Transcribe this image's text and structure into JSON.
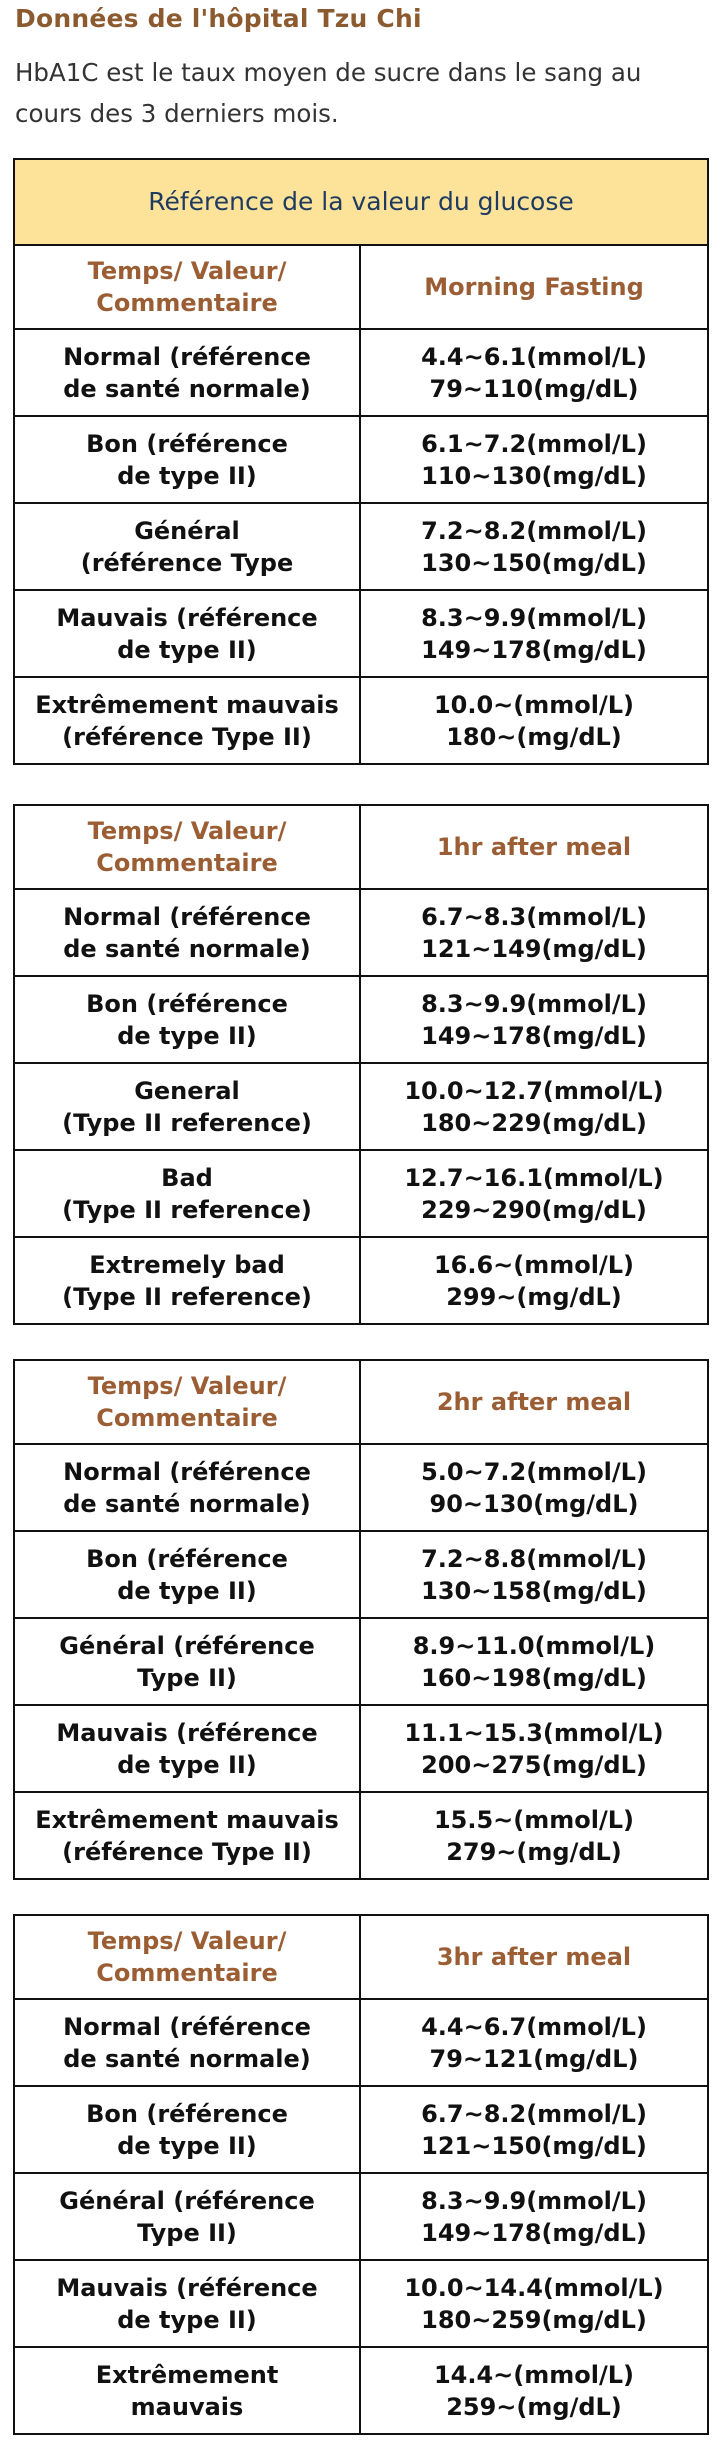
{
  "heading": "Données de l'hôpital Tzu Chi",
  "intro": "HbA1C est le taux moyen de sucre dans le sang au cours des 3 derniers mois.",
  "table_title": "Référence de la valeur du glucose",
  "tables": [
    {
      "header_left": [
        "Temps/ Valeur/",
        "Commentaire"
      ],
      "header_right": "Morning Fasting",
      "rows": [
        {
          "label": [
            "Normal (référence",
            "de santé normale)"
          ],
          "value": [
            "4.4~6.1(mmol/L)",
            "79~110(mg/dL)"
          ]
        },
        {
          "label": [
            "Bon (référence",
            "de type II)"
          ],
          "value": [
            "6.1~7.2(mmol/L)",
            "110~130(mg/dL)"
          ]
        },
        {
          "label": [
            "Général",
            "(référence Type"
          ],
          "value": [
            "7.2~8.2(mmol/L)",
            "130~150(mg/dL)"
          ]
        },
        {
          "label": [
            "Mauvais (référence",
            "de type II)"
          ],
          "value": [
            "8.3~9.9(mmol/L)",
            "149~178(mg/dL)"
          ]
        },
        {
          "label": [
            "Extrêmement mauvais",
            "(référence Type II)"
          ],
          "value": [
            "10.0~(mmol/L)",
            "180~(mg/dL)"
          ]
        }
      ]
    },
    {
      "header_left": [
        "Temps/ Valeur/",
        "Commentaire"
      ],
      "header_right": "1hr after meal",
      "rows": [
        {
          "label": [
            "Normal (référence",
            "de santé normale)"
          ],
          "value": [
            "6.7~8.3(mmol/L)",
            "121~149(mg/dL)"
          ]
        },
        {
          "label": [
            "Bon (référence",
            "de type II)"
          ],
          "value": [
            "8.3~9.9(mmol/L)",
            "149~178(mg/dL)"
          ]
        },
        {
          "label": [
            "General",
            "(Type II reference)"
          ],
          "value": [
            "10.0~12.7(mmol/L)",
            "180~229(mg/dL)"
          ]
        },
        {
          "label": [
            "Bad",
            "(Type II reference)"
          ],
          "value": [
            "12.7~16.1(mmol/L)",
            "229~290(mg/dL)"
          ]
        },
        {
          "label": [
            "Extremely bad",
            "(Type II reference)"
          ],
          "value": [
            "16.6~(mmol/L)",
            "299~(mg/dL)"
          ]
        }
      ]
    },
    {
      "header_left": [
        "Temps/ Valeur/",
        "Commentaire"
      ],
      "header_right": "2hr after meal",
      "rows": [
        {
          "label": [
            "Normal (référence",
            "de santé normale)"
          ],
          "value": [
            "5.0~7.2(mmol/L)",
            "90~130(mg/dL)"
          ]
        },
        {
          "label": [
            "Bon (référence",
            "de type II)"
          ],
          "value": [
            "7.2~8.8(mmol/L)",
            "130~158(mg/dL)"
          ]
        },
        {
          "label": [
            "Général (référence",
            "Type II)"
          ],
          "value": [
            "8.9~11.0(mmol/L)",
            "160~198(mg/dL)"
          ]
        },
        {
          "label": [
            "Mauvais (référence",
            "de type II)"
          ],
          "value": [
            "11.1~15.3(mmol/L)",
            "200~275(mg/dL)"
          ]
        },
        {
          "label": [
            "Extrêmement mauvais",
            "(référence Type II)"
          ],
          "value": [
            "15.5~(mmol/L)",
            "279~(mg/dL)"
          ]
        }
      ]
    },
    {
      "header_left": [
        "Temps/ Valeur/",
        "Commentaire"
      ],
      "header_right": "3hr after meal",
      "rows": [
        {
          "label": [
            "Normal (référence",
            "de santé normale)"
          ],
          "value": [
            "4.4~6.7(mmol/L)",
            "79~121(mg/dL)"
          ]
        },
        {
          "label": [
            "Bon (référence",
            "de type II)"
          ],
          "value": [
            "6.7~8.2(mmol/L)",
            "121~150(mg/dL)"
          ]
        },
        {
          "label": [
            "Général (référence",
            "Type II)"
          ],
          "value": [
            "8.3~9.9(mmol/L)",
            "149~178(mg/dL)"
          ]
        },
        {
          "label": [
            "Mauvais (référence",
            "de type II)"
          ],
          "value": [
            "10.0~14.4(mmol/L)",
            "180~259(mg/dL)"
          ]
        },
        {
          "label": [
            "Extrêmement",
            "mauvais"
          ],
          "value": [
            "14.4~(mmol/L)",
            "259~(mg/dL)"
          ]
        }
      ]
    }
  ]
}
